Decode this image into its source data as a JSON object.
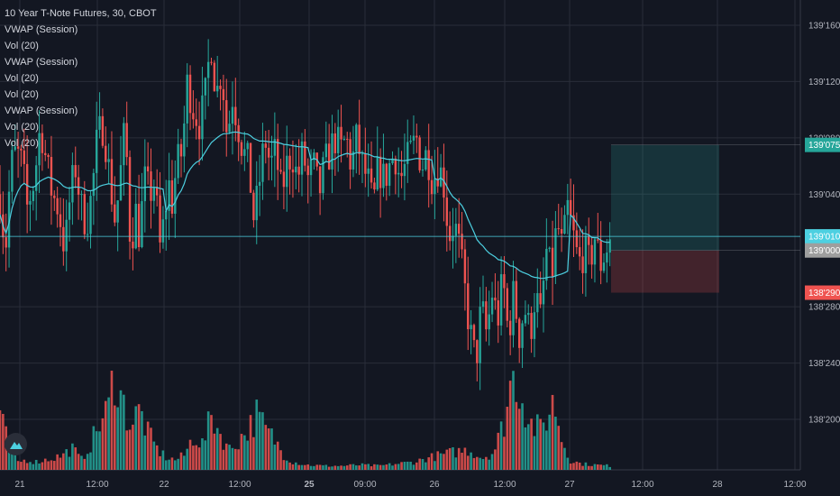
{
  "legend": {
    "title": "10 Year T-Note Futures, 30, CBOT",
    "indicators": [
      "VWAP (Session)",
      "Vol (20)",
      "VWAP (Session)",
      "Vol (20)",
      "Vol (20)",
      "VWAP (Session)",
      "Vol (20)",
      "Vol (20)"
    ]
  },
  "colors": {
    "up": "#26a69a",
    "down": "#ef5350",
    "vwap": "#4dd0e1",
    "background": "#131722",
    "grid": "#2a2e39",
    "axis_text": "#b2b5be",
    "tag_target": "#26a69a",
    "tag_current": "#4dd0e1",
    "tag_entry": "#9e9e9e",
    "tag_stop": "#ef5350"
  },
  "icons": {
    "logo": "tradingview-logo-icon"
  },
  "chart_data": {
    "type": "candlestick",
    "title": "10 Year T-Note Futures, 30, CBOT",
    "price_axis": {
      "ticks": [
        "139'160",
        "139'120",
        "139'080",
        "139'040",
        "139'010",
        "139'000",
        "138'280",
        "138'240",
        "138'200"
      ],
      "range": [
        "138'175",
        "139'175"
      ]
    },
    "time_axis": {
      "ticks": [
        "21",
        "12:00",
        "22",
        "12:00",
        "25",
        "09:00",
        "26",
        "12:00",
        "27",
        "12:00",
        "28",
        "12:00"
      ]
    },
    "price_tags": [
      {
        "label": "139'075",
        "role": "target",
        "color": "#26a69a"
      },
      {
        "label": "139'010",
        "role": "current",
        "color": "#4dd0e1"
      },
      {
        "label": "139'000",
        "role": "entry",
        "color": "#9e9e9e"
      },
      {
        "label": "138'290",
        "role": "stop",
        "color": "#ef5350"
      }
    ],
    "position_tool": {
      "type": "long",
      "target": "139'075",
      "entry": "139'000",
      "stop": "138'290"
    },
    "series": [
      {
        "name": "10 Year T-Note Futures",
        "kind": "candles",
        "anchor_closes": [
          [
            0,
            139.04
          ],
          [
            6,
            139.0
          ],
          [
            12,
            139.06
          ],
          [
            18,
            139.07
          ],
          [
            25,
            139.06
          ],
          [
            30,
            139.03
          ],
          [
            38,
            139.05
          ],
          [
            45,
            139.09
          ],
          [
            52,
            139.06
          ],
          [
            58,
            139.04
          ],
          [
            65,
            139.03
          ],
          [
            72,
            139.0
          ],
          [
            78,
            139.04
          ],
          [
            84,
            139.06
          ],
          [
            90,
            139.03
          ],
          [
            96,
            139.02
          ],
          [
            102,
            139.04
          ],
          [
            108,
            139.08
          ],
          [
            115,
            139.09
          ],
          [
            122,
            139.05
          ],
          [
            128,
            139.02
          ],
          [
            133,
            139.05
          ],
          [
            139,
            139.09
          ],
          [
            145,
            139.0
          ],
          [
            150,
            139.03
          ],
          [
            155,
            139.01
          ],
          [
            160,
            139.05
          ],
          [
            166,
            139.04
          ],
          [
            172,
            139.05
          ],
          [
            177,
            139.0
          ],
          [
            182,
            139.02
          ],
          [
            187,
            139.05
          ],
          [
            190,
            139.03
          ],
          [
            196,
            139.06
          ],
          [
            202,
            139.07
          ],
          [
            208,
            139.12
          ],
          [
            215,
            139.1
          ],
          [
            222,
            139.09
          ],
          [
            228,
            139.11
          ],
          [
            234,
            139.15
          ],
          [
            240,
            139.11
          ],
          [
            246,
            139.13
          ],
          [
            252,
            139.08
          ],
          [
            258,
            139.11
          ],
          [
            264,
            139.09
          ],
          [
            270,
            139.07
          ],
          [
            276,
            139.06
          ],
          [
            282,
            139.02
          ],
          [
            288,
            139.05
          ],
          [
            294,
            139.08
          ],
          [
            300,
            139.06
          ],
          [
            306,
            139.07
          ],
          [
            312,
            139.04
          ],
          [
            318,
            139.06
          ],
          [
            324,
            139.07
          ],
          [
            330,
            139.05
          ],
          [
            336,
            139.07
          ],
          [
            342,
            139.05
          ],
          [
            348,
            139.06
          ],
          [
            354,
            139.04
          ],
          [
            360,
            139.06
          ],
          [
            366,
            139.07
          ],
          [
            372,
            139.08
          ],
          [
            378,
            139.07
          ],
          [
            384,
            139.08
          ],
          [
            390,
            139.06
          ],
          [
            396,
            139.08
          ],
          [
            402,
            139.06
          ],
          [
            408,
            139.05
          ],
          [
            414,
            139.03
          ],
          [
            420,
            139.06
          ],
          [
            426,
            139.05
          ],
          [
            432,
            139.06
          ],
          [
            438,
            139.07
          ],
          [
            444,
            139.05
          ],
          [
            450,
            139.06
          ],
          [
            456,
            139.07
          ],
          [
            462,
            139.08
          ],
          [
            468,
            139.06
          ],
          [
            474,
            139.07
          ],
          [
            480,
            139.05
          ],
          [
            486,
            139.06
          ],
          [
            492,
            139.05
          ],
          [
            498,
            139.01
          ],
          [
            504,
            139.02
          ],
          [
            510,
            139.0
          ],
          [
            516,
            138.29
          ],
          [
            522,
            138.26
          ],
          [
            528,
            138.24
          ],
          [
            534,
            138.28
          ],
          [
            540,
            138.26
          ],
          [
            546,
            138.29
          ],
          [
            552,
            138.27
          ],
          [
            558,
            138.3
          ],
          [
            564,
            138.26
          ],
          [
            570,
            138.29
          ],
          [
            576,
            138.26
          ],
          [
            582,
            138.28
          ],
          [
            588,
            138.26
          ],
          [
            594,
            138.29
          ],
          [
            600,
            138.27
          ],
          [
            606,
            139.0
          ],
          [
            612,
            138.3
          ],
          [
            618,
            139.02
          ],
          [
            624,
            139.0
          ],
          [
            630,
            139.03
          ],
          [
            636,
            139.01
          ],
          [
            642,
            138.31
          ],
          [
            648,
            139.0
          ],
          [
            654,
            138.31
          ],
          [
            660,
            139.01
          ],
          [
            666,
            138.31
          ],
          [
            672,
            139.0
          ],
          [
            678,
            139.01
          ]
        ]
      },
      {
        "name": "VWAP (Session)",
        "kind": "line"
      },
      {
        "name": "Vol (20)",
        "kind": "histogram",
        "anchor_volumes": [
          [
            0,
            0.55
          ],
          [
            6,
            0.35
          ],
          [
            12,
            0.2
          ],
          [
            20,
            0.08
          ],
          [
            30,
            0.1
          ],
          [
            40,
            0.08
          ],
          [
            50,
            0.1
          ],
          [
            60,
            0.12
          ],
          [
            70,
            0.15
          ],
          [
            80,
            0.22
          ],
          [
            90,
            0.1
          ],
          [
            100,
            0.25
          ],
          [
            110,
            0.45
          ],
          [
            120,
            0.6
          ],
          [
            127,
            1.0
          ],
          [
            135,
            0.7
          ],
          [
            145,
            0.45
          ],
          [
            155,
            0.6
          ],
          [
            165,
            0.35
          ],
          [
            175,
            0.2
          ],
          [
            185,
            0.12
          ],
          [
            195,
            0.1
          ],
          [
            205,
            0.15
          ],
          [
            215,
            0.35
          ],
          [
            225,
            0.25
          ],
          [
            235,
            0.55
          ],
          [
            245,
            0.35
          ],
          [
            255,
            0.2
          ],
          [
            265,
            0.3
          ],
          [
            275,
            0.4
          ],
          [
            285,
            0.55
          ],
          [
            295,
            0.4
          ],
          [
            305,
            0.3
          ],
          [
            315,
            0.15
          ],
          [
            325,
            0.08
          ],
          [
            340,
            0.05
          ],
          [
            360,
            0.04
          ],
          [
            380,
            0.04
          ],
          [
            400,
            0.05
          ],
          [
            420,
            0.04
          ],
          [
            440,
            0.06
          ],
          [
            460,
            0.08
          ],
          [
            475,
            0.12
          ],
          [
            490,
            0.15
          ],
          [
            505,
            0.18
          ],
          [
            520,
            0.2
          ],
          [
            535,
            0.12
          ],
          [
            548,
            0.18
          ],
          [
            560,
            0.5
          ],
          [
            567,
            0.9
          ],
          [
            574,
            0.92
          ],
          [
            580,
            0.7
          ],
          [
            590,
            0.45
          ],
          [
            600,
            0.4
          ],
          [
            608,
            0.55
          ],
          [
            615,
            0.7
          ],
          [
            622,
            0.35
          ],
          [
            632,
            0.1
          ],
          [
            645,
            0.06
          ],
          [
            660,
            0.05
          ],
          [
            678,
            0.04
          ]
        ]
      }
    ]
  }
}
